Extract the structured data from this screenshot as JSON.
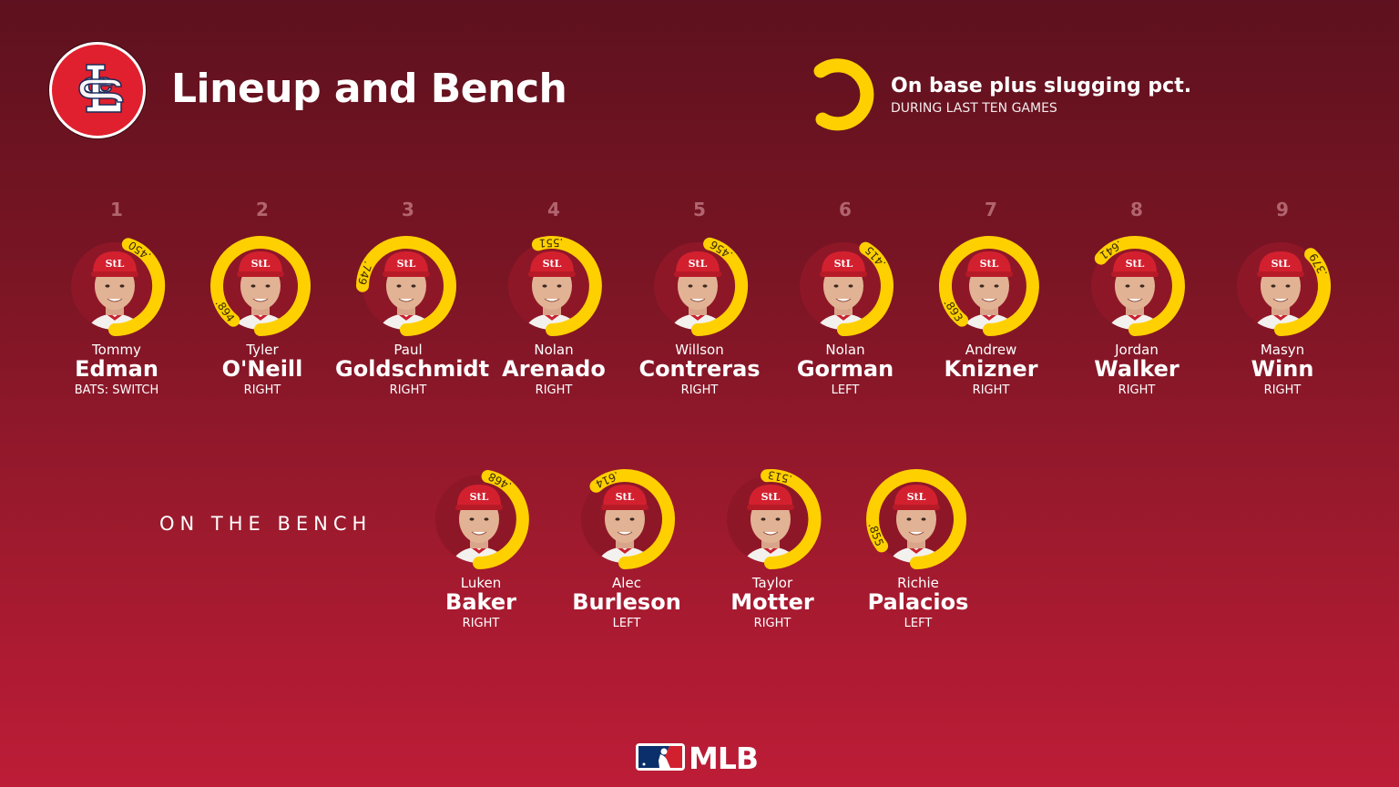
{
  "header": {
    "title": "Lineup and Bench",
    "team_logo": "cardinals-stl-logo"
  },
  "legend": {
    "title": "On base plus slugging pct.",
    "subtitle": "DURING LAST TEN GAMES",
    "color": "#ffd000"
  },
  "lineup": [
    {
      "order": "1",
      "first": "Tommy",
      "last": "Edman",
      "bats": "BATS: SWITCH",
      "ops": ".450",
      "ops_value": 0.45
    },
    {
      "order": "2",
      "first": "Tyler",
      "last": "O'Neill",
      "bats": "RIGHT",
      "ops": ".894",
      "ops_value": 0.894
    },
    {
      "order": "3",
      "first": "Paul",
      "last": "Goldschmidt",
      "bats": "RIGHT",
      "ops": ".749",
      "ops_value": 0.749
    },
    {
      "order": "4",
      "first": "Nolan",
      "last": "Arenado",
      "bats": "RIGHT",
      "ops": ".551",
      "ops_value": 0.551
    },
    {
      "order": "5",
      "first": "Willson",
      "last": "Contreras",
      "bats": "RIGHT",
      "ops": ".456",
      "ops_value": 0.456
    },
    {
      "order": "6",
      "first": "Nolan",
      "last": "Gorman",
      "bats": "LEFT",
      "ops": ".415",
      "ops_value": 0.415
    },
    {
      "order": "7",
      "first": "Andrew",
      "last": "Knizner",
      "bats": "RIGHT",
      "ops": ".893",
      "ops_value": 0.893
    },
    {
      "order": "8",
      "first": "Jordan",
      "last": "Walker",
      "bats": "RIGHT",
      "ops": ".641",
      "ops_value": 0.641
    },
    {
      "order": "9",
      "first": "Masyn",
      "last": "Winn",
      "bats": "RIGHT",
      "ops": ".379",
      "ops_value": 0.379
    }
  ],
  "bench": {
    "label": "ON THE BENCH",
    "players": [
      {
        "first": "Luken",
        "last": "Baker",
        "bats": "RIGHT",
        "ops": ".468",
        "ops_value": 0.468
      },
      {
        "first": "Alec",
        "last": "Burleson",
        "bats": "LEFT",
        "ops": ".614",
        "ops_value": 0.614
      },
      {
        "first": "Taylor",
        "last": "Motter",
        "bats": "RIGHT",
        "ops": ".513",
        "ops_value": 0.513
      },
      {
        "first": "Richie",
        "last": "Palacios",
        "bats": "LEFT",
        "ops": ".855",
        "ops_value": 0.855
      }
    ]
  },
  "footer": {
    "brand": "MLB"
  },
  "colors": {
    "ring": "#ffd000",
    "background_top": "#5e111e",
    "background_bottom": "#bd1c37",
    "cap_red": "#d3202f"
  }
}
